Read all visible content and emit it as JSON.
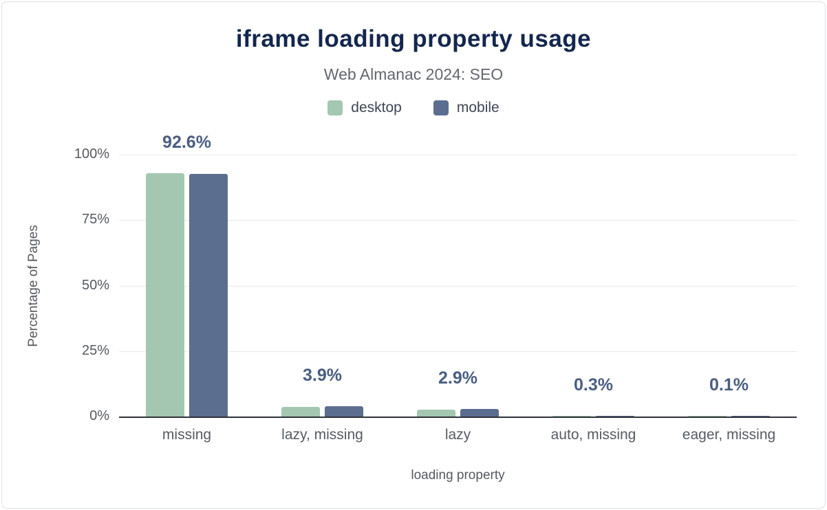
{
  "chart_data": {
    "type": "bar",
    "title": "iframe loading property usage",
    "subtitle": "Web Almanac 2024: SEO",
    "xlabel": "loading property",
    "ylabel": "Percentage of Pages",
    "ylim": [
      0,
      100
    ],
    "grid": true,
    "legend_position": "top",
    "categories": [
      "missing",
      "lazy, missing",
      "lazy",
      "auto, missing",
      "eager, missing"
    ],
    "series": [
      {
        "name": "desktop",
        "color": "#a4c7b2",
        "values": [
          92.9,
          3.7,
          2.7,
          0.3,
          0.1
        ]
      },
      {
        "name": "mobile",
        "color": "#5b6e90",
        "values": [
          92.6,
          3.9,
          2.9,
          0.3,
          0.1
        ]
      }
    ],
    "value_labels": [
      "92.6%",
      "3.9%",
      "2.9%",
      "0.3%",
      "0.1%"
    ],
    "yticks": [
      {
        "label": "0%",
        "value": 0
      },
      {
        "label": "25%",
        "value": 25
      },
      {
        "label": "50%",
        "value": 50
      },
      {
        "label": "75%",
        "value": 75
      },
      {
        "label": "100%",
        "value": 100
      }
    ],
    "colors": {
      "title": "#13264d",
      "subtitle": "#62666d",
      "value_label": "#4a5d82",
      "axis_line": "#2e3138",
      "gridline": "#e7e9eb"
    }
  }
}
